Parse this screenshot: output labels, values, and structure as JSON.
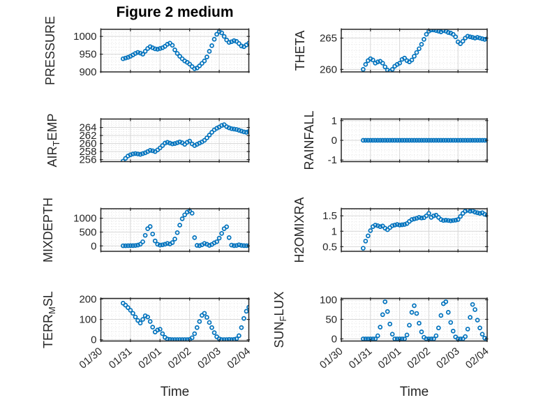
{
  "title": "Figure 2 medium",
  "x_axis": {
    "label": "Time",
    "tick_labels": [
      "01/30",
      "01/31",
      "02/01",
      "02/02",
      "02/03",
      "02/04"
    ],
    "range_days": [
      0,
      5
    ],
    "minor_step_days": 0.125
  },
  "marker": {
    "shape": "open-circle",
    "color": "#0072BD",
    "radius": 2.5,
    "stroke_width": 1.7
  },
  "colors": {
    "axes": "#262626",
    "text": "#262626",
    "major_grid": "#d6d6d6",
    "minor_grid": "#dedede",
    "background": "#ffffff"
  },
  "sampling": {
    "start_day_offset": 0.75,
    "step_days": 0.0833333
  },
  "chart_data": [
    {
      "type": "scatter",
      "name": "PRESSURE",
      "ylabel_pre": "PRESSURE",
      "ylabel_sub": "",
      "ylabel_post": "",
      "ylim": [
        900,
        1020
      ],
      "ytick_values": [
        900,
        950,
        1000
      ],
      "ytick_labels": [
        "900",
        "950",
        "1000"
      ],
      "yminor_step": 10,
      "values": [
        937,
        939,
        941,
        944,
        948,
        952,
        955,
        953,
        950,
        958,
        966,
        971,
        968,
        965,
        964,
        966,
        968,
        972,
        978,
        981,
        975,
        962,
        952,
        944,
        937,
        931,
        927,
        922,
        915,
        909,
        911,
        917,
        924,
        931,
        942,
        958,
        974,
        992,
        1006,
        1014,
        1010,
        1000,
        990,
        983,
        985,
        988,
        986,
        980,
        973,
        971,
        976,
        981
      ]
    },
    {
      "type": "scatter",
      "name": "THETA",
      "ylabel_pre": "THETA",
      "ylabel_sub": "",
      "ylabel_post": "",
      "ylim": [
        259.6,
        266.4
      ],
      "ytick_values": [
        260,
        265
      ],
      "ytick_labels": [
        "260",
        "265"
      ],
      "yminor_step": 1,
      "values": [
        260.0,
        260.8,
        261.4,
        261.7,
        261.5,
        261.0,
        261.2,
        261.3,
        261.0,
        260.4,
        259.9,
        259.7,
        260.0,
        260.5,
        260.8,
        261.0,
        261.6,
        261.8,
        261.4,
        261.2,
        261.5,
        262.1,
        262.7,
        263.3,
        264.0,
        264.8,
        265.6,
        266.1,
        266.3,
        266.3,
        266.2,
        266.1,
        266.0,
        266.2,
        266.1,
        265.9,
        265.8,
        265.6,
        265.2,
        264.4,
        264.1,
        264.5,
        265.0,
        265.3,
        265.2,
        265.1,
        265.0,
        265.1,
        265.0,
        264.9,
        264.8,
        264.9
      ]
    },
    {
      "type": "scatter",
      "name": "AIR_TEMP",
      "ylabel_pre": "AIR",
      "ylabel_sub": "T",
      "ylabel_post": "EMP",
      "ylim": [
        255.5,
        266.1
      ],
      "ytick_values": [
        256,
        258,
        260,
        262,
        264
      ],
      "ytick_labels": [
        "256",
        "258",
        "260",
        "262",
        "264"
      ],
      "yminor_step": 0.5,
      "values": [
        255.6,
        256.3,
        256.9,
        257.2,
        257.4,
        257.5,
        257.4,
        257.3,
        257.5,
        257.7,
        258.0,
        258.3,
        258.2,
        258.0,
        258.4,
        258.9,
        259.5,
        260.1,
        260.3,
        260.1,
        259.9,
        260.0,
        260.2,
        260.4,
        260.2,
        259.8,
        260.3,
        260.6,
        259.9,
        259.5,
        259.8,
        260.1,
        260.4,
        260.8,
        261.4,
        262.1,
        262.8,
        263.4,
        263.8,
        264.1,
        264.5,
        264.7,
        264.2,
        263.9,
        263.7,
        263.6,
        263.5,
        263.3,
        263.1,
        262.9,
        262.8,
        263.0
      ]
    },
    {
      "type": "scatter",
      "name": "RAINFALL",
      "ylabel_pre": "RAINFALL",
      "ylabel_sub": "",
      "ylabel_post": "",
      "ylim": [
        -1.08,
        1.08
      ],
      "ytick_values": [
        -1,
        0,
        1
      ],
      "ytick_labels": [
        "-1",
        "0",
        "1"
      ],
      "yminor_step": 0.25,
      "values": [
        0,
        0,
        0,
        0,
        0,
        0,
        0,
        0,
        0,
        0,
        0,
        0,
        0,
        0,
        0,
        0,
        0,
        0,
        0,
        0,
        0,
        0,
        0,
        0,
        0,
        0,
        0,
        0,
        0,
        0,
        0,
        0,
        0,
        0,
        0,
        0,
        0,
        0,
        0,
        0,
        0,
        0,
        0,
        0,
        0,
        0,
        0,
        0,
        0,
        0,
        0,
        0
      ]
    },
    {
      "type": "scatter",
      "name": "MIXDEPTH",
      "ylabel_pre": "MIXDEPTH",
      "ylabel_sub": "",
      "ylabel_post": "",
      "ylim": [
        -195,
        1342
      ],
      "ytick_values": [
        0,
        500,
        1000
      ],
      "ytick_labels": [
        "0",
        "500",
        "1000"
      ],
      "yminor_step": 100,
      "values": [
        5,
        5,
        8,
        10,
        10,
        15,
        30,
        60,
        150,
        380,
        620,
        700,
        430,
        180,
        60,
        30,
        40,
        60,
        90,
        70,
        120,
        250,
        480,
        750,
        980,
        1120,
        1220,
        1260,
        1180,
        300,
        20,
        10,
        40,
        90,
        60,
        20,
        50,
        110,
        150,
        280,
        450,
        620,
        690,
        300,
        30,
        10,
        15,
        40,
        20,
        10,
        8,
        10
      ]
    },
    {
      "type": "scatter",
      "name": "H2OMIXRA",
      "ylabel_pre": "H2OMIXRA",
      "ylabel_sub": "",
      "ylabel_post": "",
      "ylim": [
        0.35,
        1.73
      ],
      "ytick_values": [
        0.5,
        1,
        1.5
      ],
      "ytick_labels": [
        "0.5",
        "1",
        "1.5"
      ],
      "yminor_step": 0.1,
      "values": [
        0.45,
        0.68,
        0.85,
        1.02,
        1.15,
        1.2,
        1.18,
        1.15,
        1.17,
        1.1,
        1.05,
        1.12,
        1.18,
        1.2,
        1.22,
        1.2,
        1.21,
        1.22,
        1.25,
        1.32,
        1.38,
        1.4,
        1.42,
        1.45,
        1.43,
        1.44,
        1.5,
        1.58,
        1.45,
        1.5,
        1.52,
        1.45,
        1.38,
        1.35,
        1.36,
        1.35,
        1.34,
        1.35,
        1.36,
        1.38,
        1.48,
        1.58,
        1.65,
        1.68,
        1.65,
        1.66,
        1.62,
        1.6,
        1.58,
        1.6,
        1.55,
        1.52
      ]
    },
    {
      "type": "scatter",
      "name": "TERR_MSL",
      "ylabel_pre": "TERR",
      "ylabel_sub": "M",
      "ylabel_post": "SL",
      "ylim": [
        -6,
        203
      ],
      "ytick_values": [
        0,
        100,
        200
      ],
      "ytick_labels": [
        "0",
        "100",
        "200"
      ],
      "yminor_step": 20,
      "values": [
        180,
        170,
        158,
        145,
        130,
        112,
        95,
        82,
        100,
        118,
        112,
        90,
        62,
        38,
        48,
        52,
        30,
        12,
        4,
        2,
        1,
        1,
        1,
        1,
        1,
        1,
        1,
        2,
        10,
        30,
        60,
        90,
        120,
        130,
        110,
        85,
        60,
        35,
        15,
        5,
        1,
        1,
        1,
        2,
        1,
        2,
        5,
        20,
        60,
        105,
        140,
        160
      ]
    },
    {
      "type": "scatter",
      "name": "SUN_FLUX",
      "ylabel_pre": "SUN",
      "ylabel_sub": "F",
      "ylabel_post": "LUX",
      "ylim": [
        -5.5,
        103.5
      ],
      "ytick_values": [
        0,
        50,
        100
      ],
      "ytick_labels": [
        "0",
        "50",
        "100"
      ],
      "yminor_step": 10,
      "values": [
        0,
        0,
        0,
        0,
        0,
        0,
        8,
        30,
        62,
        95,
        70,
        38,
        12,
        0,
        0,
        0,
        0,
        0,
        10,
        35,
        68,
        85,
        65,
        40,
        18,
        4,
        0,
        0,
        0,
        0,
        8,
        28,
        60,
        90,
        95,
        68,
        42,
        20,
        5,
        0,
        0,
        0,
        6,
        25,
        55,
        88,
        75,
        48,
        28,
        12,
        2,
        0
      ]
    }
  ]
}
